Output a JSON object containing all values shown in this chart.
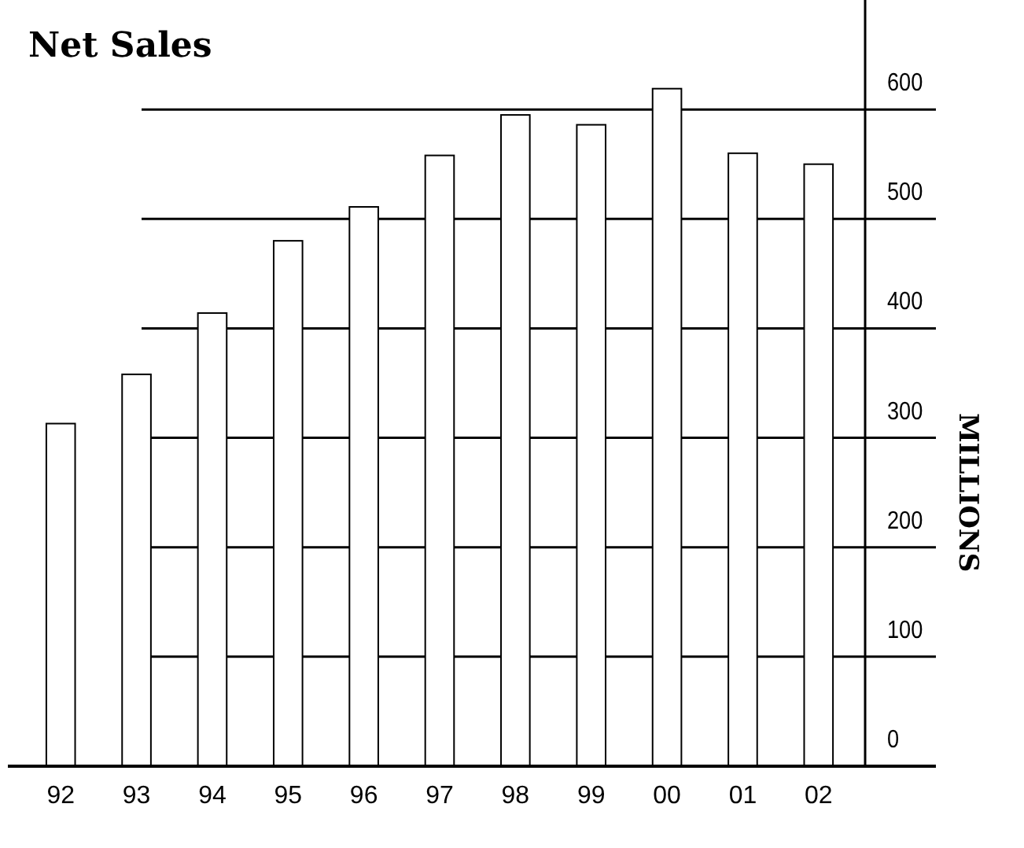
{
  "chart_data": {
    "type": "bar",
    "title": "Net Sales",
    "ylabel": "MILLIONS",
    "categories": [
      "92",
      "93",
      "94",
      "95",
      "96",
      "97",
      "98",
      "99",
      "00",
      "01",
      "02"
    ],
    "values": [
      313,
      358,
      414,
      480,
      511,
      558,
      595,
      586,
      619,
      560,
      550
    ],
    "color": "#ffffff",
    "ylim": [
      0,
      700
    ],
    "yticks": [
      0,
      100,
      200,
      300,
      400,
      500,
      600
    ],
    "grid": "y"
  }
}
